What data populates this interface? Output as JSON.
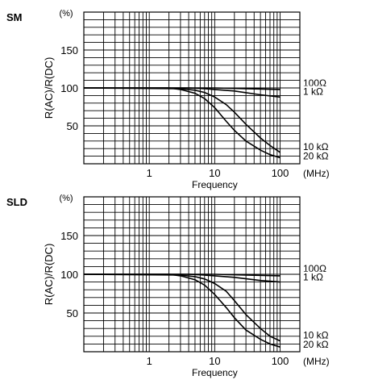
{
  "chart_data": [
    {
      "type": "line",
      "title": "SM",
      "xlabel": "Frequency",
      "x_unit": "(MHz)",
      "ylabel": "R(AC)/R(DC)",
      "y_unit": "(%)",
      "x_scale": "log",
      "xlim": [
        0.1,
        200
      ],
      "ylim": [
        0,
        200
      ],
      "x_ticks": [
        {
          "value": 1,
          "label": "1"
        },
        {
          "value": 10,
          "label": "10"
        },
        {
          "value": 100,
          "label": "100"
        }
      ],
      "y_ticks": [
        {
          "value": 50,
          "label": "50"
        },
        {
          "value": 100,
          "label": "100"
        },
        {
          "value": 150,
          "label": "150"
        }
      ],
      "grid": true,
      "series": [
        {
          "name": "100Ω",
          "x": [
            0.1,
            10,
            30,
            100
          ],
          "y": [
            100,
            100,
            99,
            98
          ]
        },
        {
          "name": "1 kΩ",
          "x": [
            0.1,
            4,
            7,
            10,
            20,
            50,
            100
          ],
          "y": [
            100,
            100,
            99,
            98,
            96,
            91,
            88
          ]
        },
        {
          "name": "10 kΩ",
          "x": [
            0.1,
            3,
            5,
            7,
            10,
            15,
            20,
            30,
            50,
            70,
            100
          ],
          "y": [
            100,
            99,
            97,
            94,
            88,
            78,
            68,
            52,
            34,
            24,
            15
          ]
        },
        {
          "name": "20 kΩ",
          "x": [
            0.1,
            2,
            3,
            5,
            7,
            10,
            15,
            20,
            30,
            50,
            70,
            100
          ],
          "y": [
            100,
            100,
            98,
            93,
            86,
            74,
            56,
            44,
            30,
            18,
            12,
            8
          ]
        }
      ]
    },
    {
      "type": "line",
      "title": "SLD",
      "xlabel": "Frequency",
      "x_unit": "(MHz)",
      "ylabel": "R(AC)/R(DC)",
      "y_unit": "(%)",
      "x_scale": "log",
      "xlim": [
        0.1,
        200
      ],
      "ylim": [
        0,
        200
      ],
      "x_ticks": [
        {
          "value": 1,
          "label": "1"
        },
        {
          "value": 10,
          "label": "10"
        },
        {
          "value": 100,
          "label": "100"
        }
      ],
      "y_ticks": [
        {
          "value": 50,
          "label": "50"
        },
        {
          "value": 100,
          "label": "100"
        },
        {
          "value": 150,
          "label": "150"
        }
      ],
      "grid": true,
      "series": [
        {
          "name": "100Ω",
          "x": [
            0.1,
            10,
            30,
            100
          ],
          "y": [
            100,
            100,
            99,
            98
          ]
        },
        {
          "name": "1 kΩ",
          "x": [
            0.1,
            4,
            7,
            10,
            20,
            50,
            100
          ],
          "y": [
            100,
            100,
            99,
            98,
            96,
            92,
            90
          ]
        },
        {
          "name": "10 kΩ",
          "x": [
            0.1,
            3,
            5,
            7,
            10,
            15,
            20,
            30,
            50,
            70,
            100
          ],
          "y": [
            100,
            99,
            97,
            94,
            88,
            78,
            66,
            48,
            30,
            20,
            14
          ]
        },
        {
          "name": "20 kΩ",
          "x": [
            0.1,
            2,
            3,
            5,
            7,
            10,
            15,
            20,
            30,
            50,
            70,
            100
          ],
          "y": [
            100,
            100,
            98,
            93,
            86,
            74,
            57,
            44,
            28,
            16,
            10,
            6
          ]
        }
      ]
    }
  ]
}
